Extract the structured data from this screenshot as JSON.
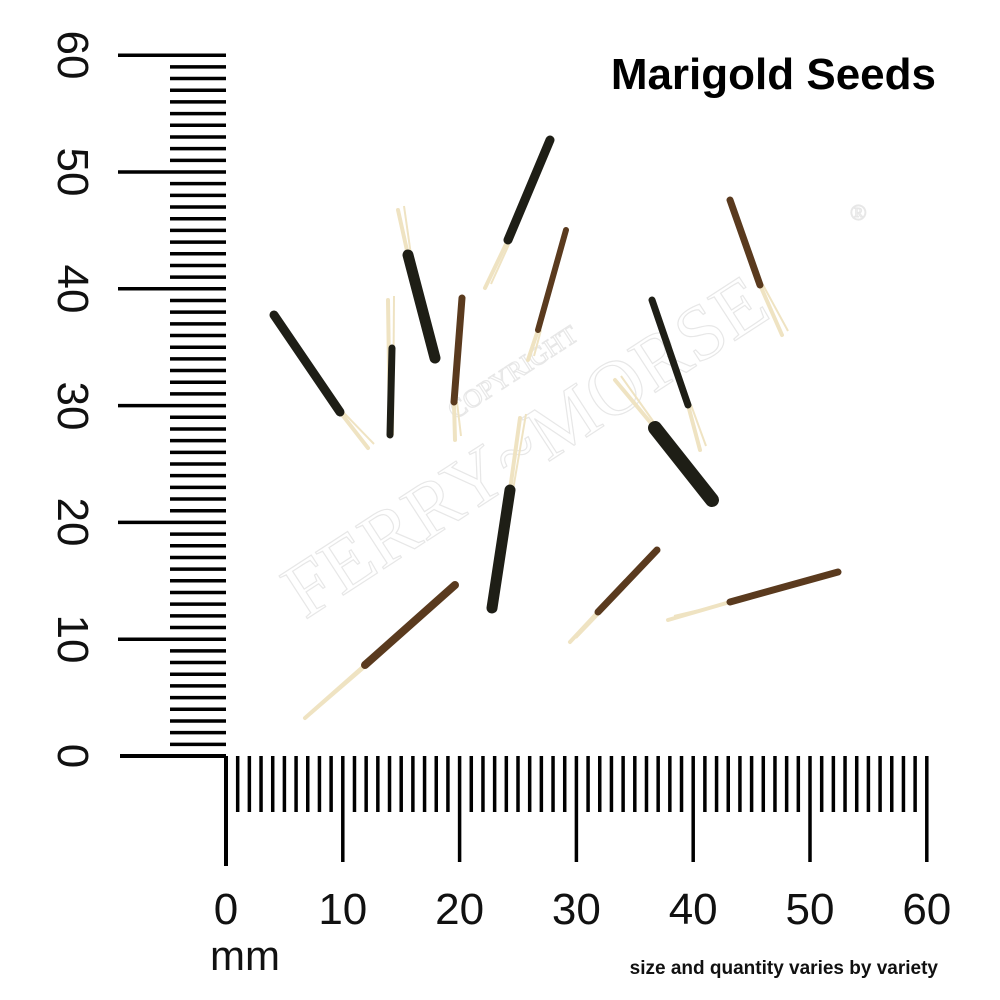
{
  "title": "Marigold Seeds",
  "unit": "mm",
  "note": "size and quantity varies by variety",
  "watermark": {
    "line1": "COPYRIGHT",
    "line2": "FERRY~MORSE",
    "mark": "®"
  },
  "ruler": {
    "labels": [
      "0",
      "10",
      "20",
      "30",
      "40",
      "50",
      "60"
    ],
    "max_mm": 60,
    "color": "#000000"
  },
  "seed_colors": {
    "body_dark": "#1e1e16",
    "body_brown": "#5a3a1e",
    "pappus": "#efe3c2"
  }
}
